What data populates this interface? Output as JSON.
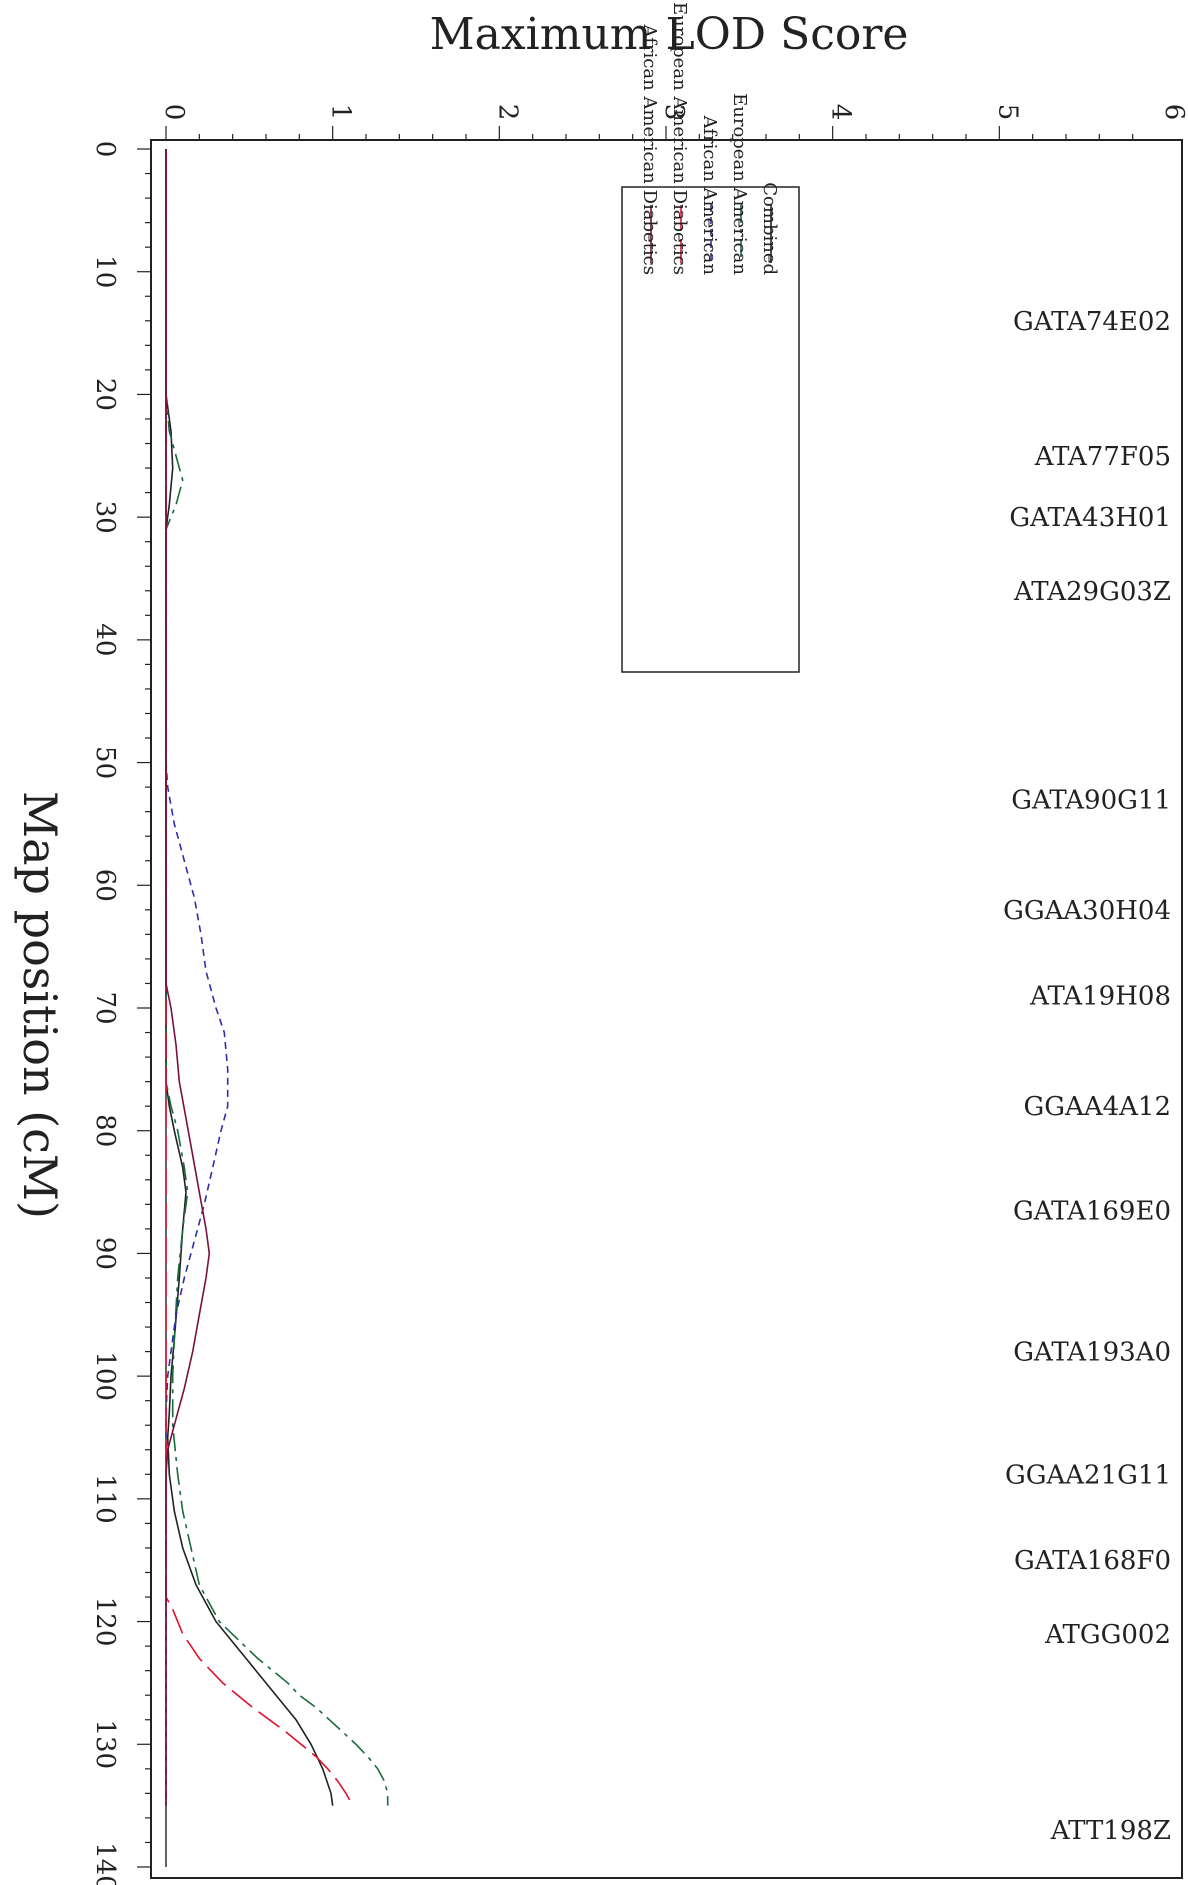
{
  "chart_data": {
    "type": "line",
    "title": "",
    "xlabel": "Map position (cM)",
    "ylabel": "Maximum LOD Score",
    "xlim": [
      0,
      140
    ],
    "ylim": [
      0,
      6
    ],
    "x_ticks": [
      0,
      10,
      20,
      30,
      40,
      50,
      60,
      70,
      80,
      90,
      100,
      110,
      120,
      130,
      140
    ],
    "y_ticks": [
      0,
      1,
      2,
      3,
      4,
      5,
      6
    ],
    "legend_position": "top-right",
    "markers": [
      {
        "name": "GATA74E02",
        "x": 14
      },
      {
        "name": "ATA77F05",
        "x": 25
      },
      {
        "name": "GATA43H01",
        "x": 30
      },
      {
        "name": "ATA29G03Z",
        "x": 36
      },
      {
        "name": "GATA90G11",
        "x": 53
      },
      {
        "name": "GGAA30H04",
        "x": 62
      },
      {
        "name": "ATA19H08",
        "x": 69
      },
      {
        "name": "GGAA4A12",
        "x": 78
      },
      {
        "name": "GATA169E0",
        "x": 86.5
      },
      {
        "name": "GATA193A0",
        "x": 98
      },
      {
        "name": "GGAA21G11",
        "x": 108
      },
      {
        "name": "GATA168F0",
        "x": 115
      },
      {
        "name": "ATGG002",
        "x": 121
      },
      {
        "name": "ATT198Z",
        "x": 137
      }
    ],
    "series": [
      {
        "name": "Combined",
        "color": "#222222",
        "dash": "solid",
        "points": [
          [
            0,
            0
          ],
          [
            20,
            0
          ],
          [
            23,
            0.03
          ],
          [
            26,
            0.04
          ],
          [
            29,
            0.02
          ],
          [
            31,
            0
          ],
          [
            50,
            0
          ],
          [
            76,
            0
          ],
          [
            78,
            0.02
          ],
          [
            80,
            0.05
          ],
          [
            83,
            0.1
          ],
          [
            85,
            0.12
          ],
          [
            88,
            0.1
          ],
          [
            92,
            0.08
          ],
          [
            97,
            0.05
          ],
          [
            100,
            0.03
          ],
          [
            103,
            0.02
          ],
          [
            105,
            0.01
          ],
          [
            108,
            0.02
          ],
          [
            111,
            0.05
          ],
          [
            114,
            0.1
          ],
          [
            117,
            0.18
          ],
          [
            120,
            0.3
          ],
          [
            123,
            0.48
          ],
          [
            126,
            0.66
          ],
          [
            127,
            0.72
          ],
          [
            128,
            0.78
          ],
          [
            130,
            0.87
          ],
          [
            132,
            0.94
          ],
          [
            134,
            0.99
          ],
          [
            135,
            1.0
          ]
        ]
      },
      {
        "name": "European American",
        "color": "#1a6b3c",
        "dash": "18 6 4 6",
        "points": [
          [
            0,
            0
          ],
          [
            20,
            0
          ],
          [
            23,
            0.02
          ],
          [
            25,
            0.06
          ],
          [
            27,
            0.1
          ],
          [
            29,
            0.06
          ],
          [
            31,
            0
          ],
          [
            50,
            0
          ],
          [
            76,
            0
          ],
          [
            78,
            0.03
          ],
          [
            80,
            0.07
          ],
          [
            83,
            0.11
          ],
          [
            85,
            0.13
          ],
          [
            88,
            0.1
          ],
          [
            92,
            0.07
          ],
          [
            97,
            0.05
          ],
          [
            100,
            0.04
          ],
          [
            104,
            0.04
          ],
          [
            108,
            0.07
          ],
          [
            111,
            0.1
          ],
          [
            114,
            0.15
          ],
          [
            117,
            0.2
          ],
          [
            120,
            0.32
          ],
          [
            123,
            0.55
          ],
          [
            125,
            0.73
          ],
          [
            126,
            0.8
          ],
          [
            127,
            0.9
          ],
          [
            128,
            0.98
          ],
          [
            129,
            1.06
          ],
          [
            130,
            1.14
          ],
          [
            131,
            1.21
          ],
          [
            132,
            1.27
          ],
          [
            133,
            1.31
          ],
          [
            134,
            1.33
          ],
          [
            135,
            1.33
          ]
        ]
      },
      {
        "name": "African American",
        "color": "#2e2ea8",
        "dash": "7 5",
        "points": [
          [
            0,
            0
          ],
          [
            50,
            0
          ],
          [
            52,
            0.01
          ],
          [
            55,
            0.05
          ],
          [
            58,
            0.11
          ],
          [
            61,
            0.17
          ],
          [
            64,
            0.21
          ],
          [
            67,
            0.24
          ],
          [
            70,
            0.3
          ],
          [
            72,
            0.35
          ],
          [
            75,
            0.37
          ],
          [
            78,
            0.37
          ],
          [
            80,
            0.33
          ],
          [
            83,
            0.28
          ],
          [
            86,
            0.23
          ],
          [
            89,
            0.17
          ],
          [
            92,
            0.11
          ],
          [
            95,
            0.06
          ],
          [
            98,
            0.03
          ],
          [
            100,
            0.01
          ],
          [
            103,
            0
          ],
          [
            135,
            0
          ]
        ]
      },
      {
        "name": "European American Diabetics",
        "color": "#e0102a",
        "dash": "26 8",
        "points": [
          [
            0,
            0
          ],
          [
            118,
            0
          ],
          [
            119,
            0.04
          ],
          [
            120,
            0.07
          ],
          [
            121,
            0.1
          ],
          [
            122,
            0.15
          ],
          [
            123,
            0.2
          ],
          [
            124,
            0.27
          ],
          [
            125,
            0.34
          ],
          [
            126,
            0.43
          ],
          [
            127,
            0.52
          ],
          [
            128,
            0.62
          ],
          [
            129,
            0.72
          ],
          [
            130,
            0.81
          ],
          [
            131,
            0.9
          ],
          [
            132,
            0.97
          ],
          [
            133,
            1.03
          ],
          [
            134,
            1.08
          ],
          [
            135,
            1.12
          ]
        ]
      },
      {
        "name": "African American Diabetics",
        "color": "#7a1040",
        "dash": "solid",
        "points": [
          [
            0,
            0
          ],
          [
            13,
            0
          ],
          [
            68,
            0
          ],
          [
            70,
            0.03
          ],
          [
            73,
            0.06
          ],
          [
            76,
            0.08
          ],
          [
            79,
            0.12
          ],
          [
            82,
            0.16
          ],
          [
            85,
            0.2
          ],
          [
            88,
            0.24
          ],
          [
            90,
            0.26
          ],
          [
            92,
            0.24
          ],
          [
            95,
            0.2
          ],
          [
            98,
            0.16
          ],
          [
            101,
            0.11
          ],
          [
            104,
            0.05
          ],
          [
            106,
            0.01
          ],
          [
            108,
            0
          ],
          [
            135,
            0
          ]
        ]
      }
    ]
  }
}
